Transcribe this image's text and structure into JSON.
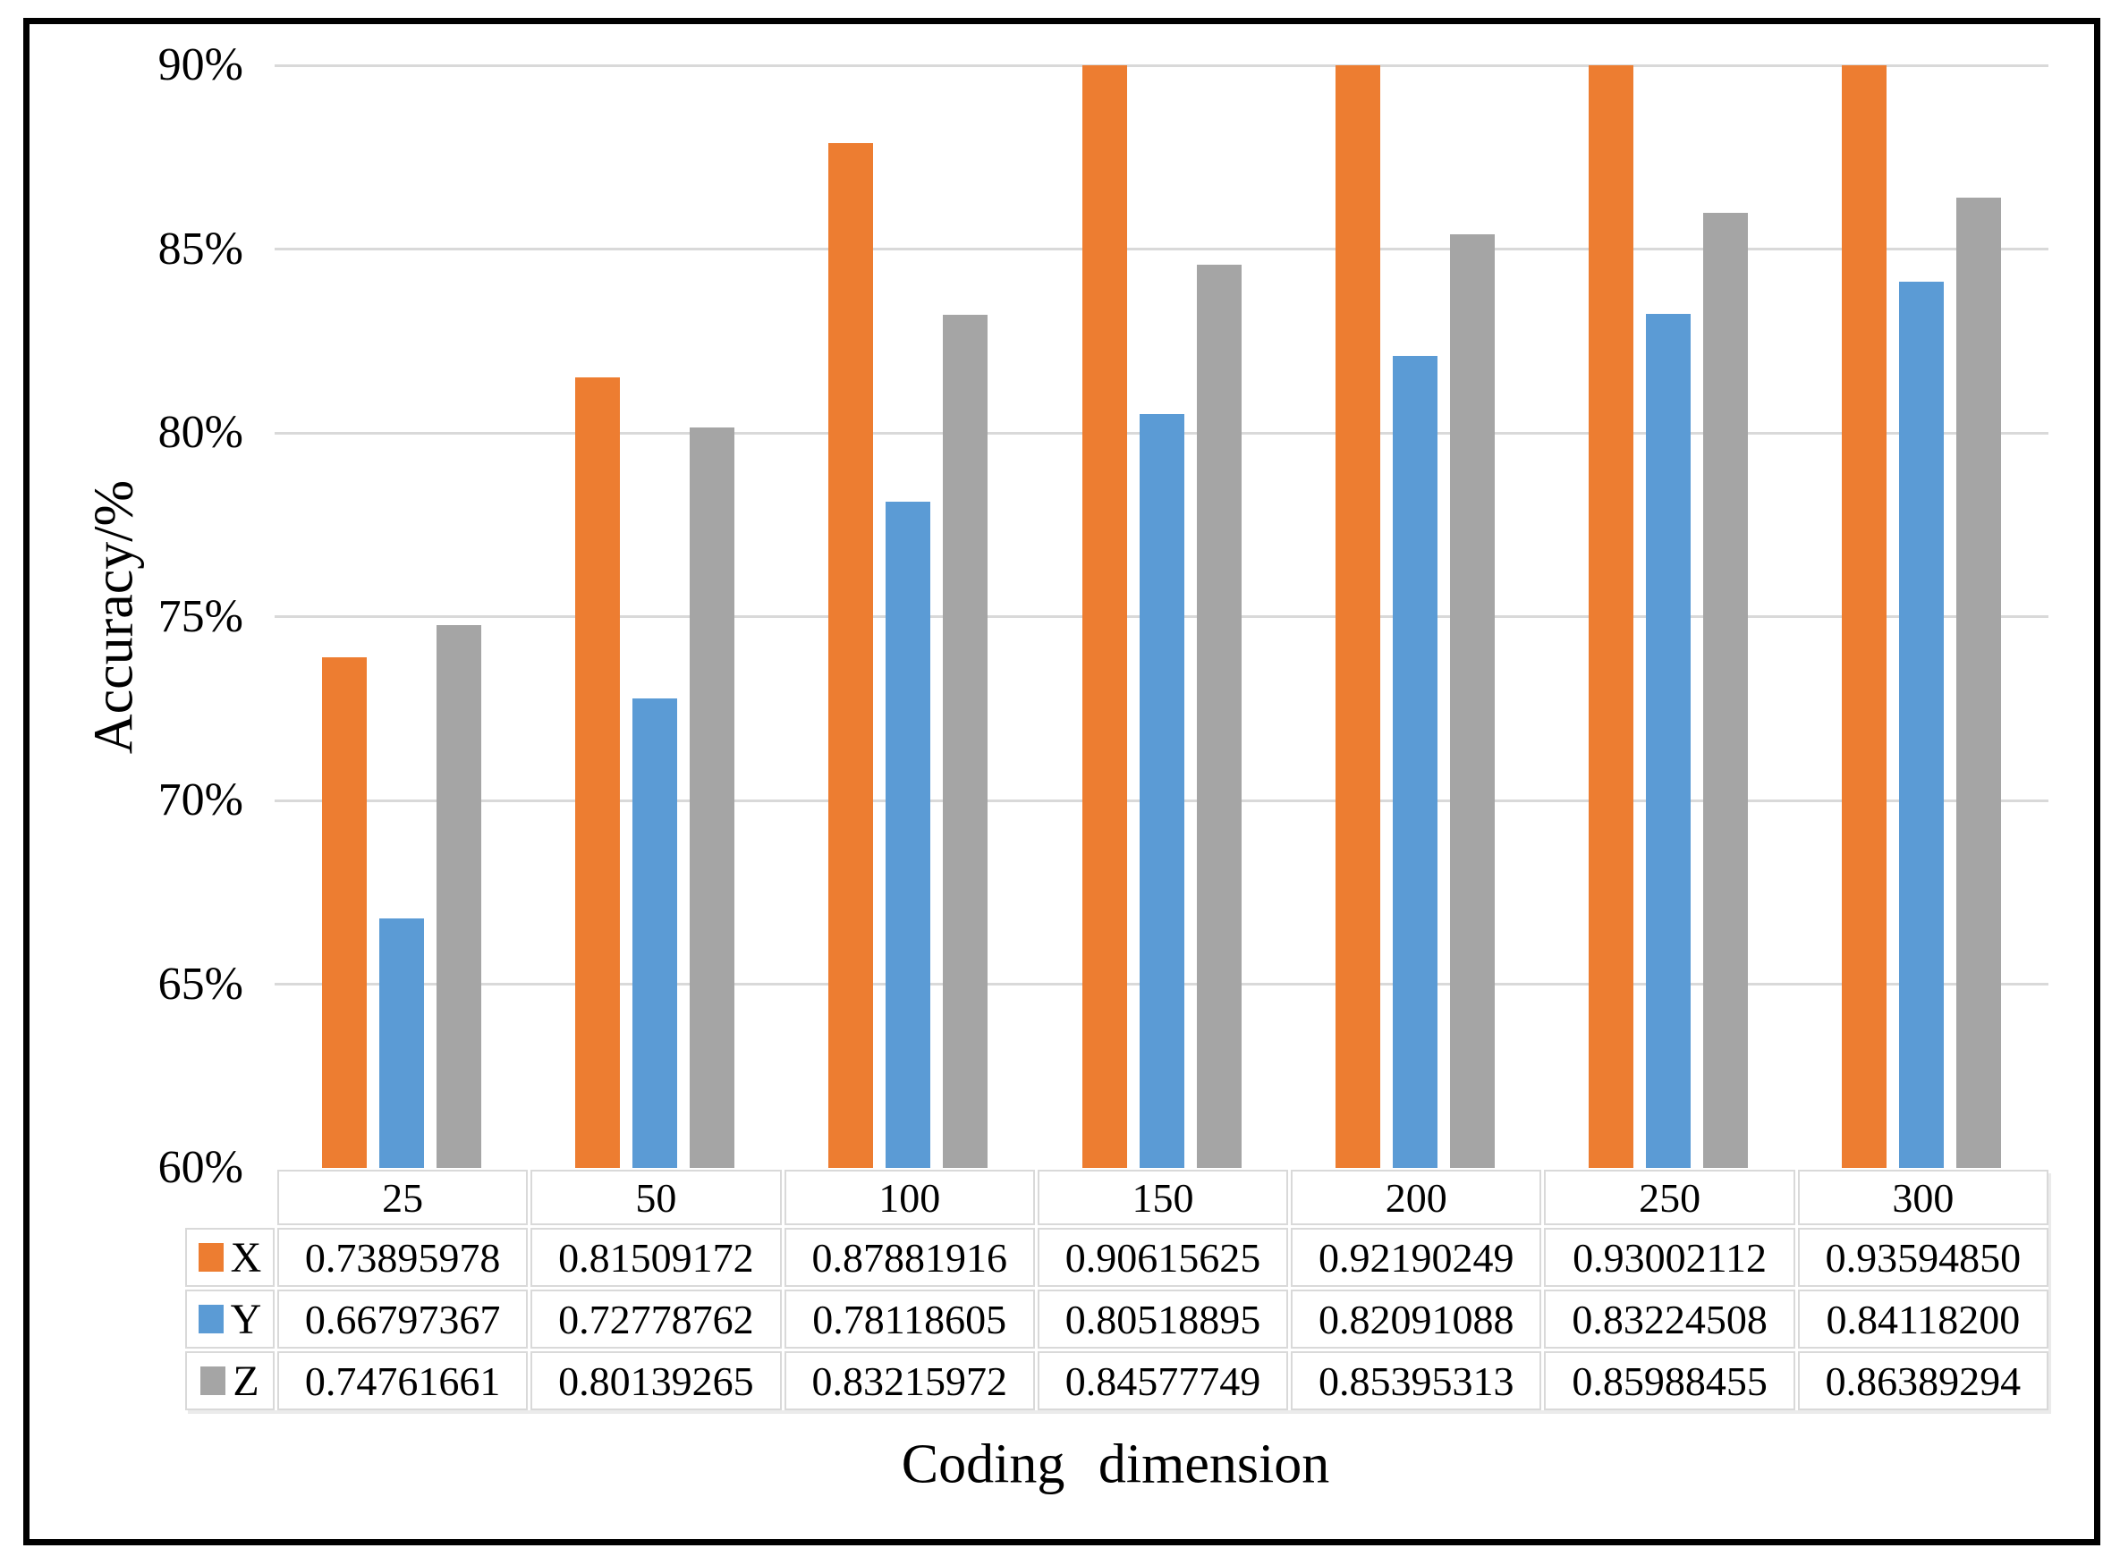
{
  "styles": {
    "background": "#FFFFFF",
    "frame_color": "#000000",
    "gridline_color": "#D9D9D9",
    "table_border_color": "#D9D9D9",
    "text_color": "#000000"
  },
  "chart_data": {
    "type": "bar",
    "title": "",
    "categories": [
      "25",
      "50",
      "100",
      "150",
      "200",
      "250",
      "300"
    ],
    "series": [
      {
        "name": "X",
        "color": "#ED7D31",
        "values": [
          "0.73895978",
          "0.81509172",
          "0.87881916",
          "0.90615625",
          "0.92190249",
          "0.93002112",
          "0.93594850"
        ]
      },
      {
        "name": "Y",
        "color": "#5B9BD5",
        "values": [
          "0.66797367",
          "0.72778762",
          "0.78118605",
          "0.80518895",
          "0.82091088",
          "0.83224508",
          "0.84118200"
        ]
      },
      {
        "name": "Z",
        "color": "#A5A5A5",
        "values": [
          "0.74761661",
          "0.80139265",
          "0.83215972",
          "0.84577749",
          "0.85395313",
          "0.85988455",
          "0.86389294"
        ]
      }
    ],
    "xlabel": "Coding dimension",
    "ylabel": "Accuracy/%",
    "ylim": [
      0.6,
      0.9
    ],
    "y_ticks": [
      {
        "value": 0.9,
        "label": "90%"
      },
      {
        "value": 0.85,
        "label": "85%"
      },
      {
        "value": 0.8,
        "label": "80%"
      },
      {
        "value": 0.75,
        "label": "75%"
      },
      {
        "value": 0.7,
        "label": "70%"
      },
      {
        "value": 0.65,
        "label": "65%"
      },
      {
        "value": 0.6,
        "label": "60%"
      }
    ],
    "grid": true,
    "legend_position": "data-table-left",
    "bars_clipped_at_ymax": true
  }
}
